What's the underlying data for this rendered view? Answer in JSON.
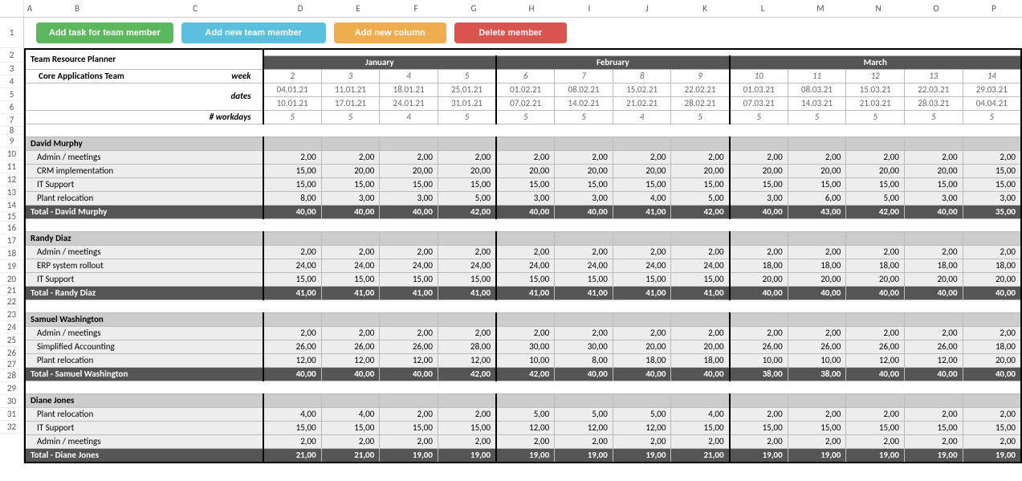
{
  "columns": [
    "A",
    "B",
    "C",
    "D",
    "E",
    "F",
    "G",
    "H",
    "I",
    "J",
    "K",
    "L",
    "M",
    "N",
    "O",
    "P"
  ],
  "rowNumbers": [
    1,
    2,
    3,
    4,
    5,
    6,
    7,
    8,
    9,
    10,
    11,
    12,
    13,
    14,
    15,
    16,
    17,
    18,
    19,
    20,
    21,
    22,
    23,
    24,
    25,
    26,
    27,
    28,
    29,
    30,
    31,
    32
  ],
  "buttons": {
    "addTask": "Add task for team member",
    "addMember": "Add new team member",
    "addColumn": "Add new column",
    "delMember": "Delete member"
  },
  "title": "Team Resource Planner",
  "teamName": "Core Applications Team",
  "headerLabels": {
    "week": "week",
    "dates": "dates",
    "workdays": "# workdays"
  },
  "months": [
    {
      "name": "January",
      "cols": 4
    },
    {
      "name": "February",
      "cols": 4
    },
    {
      "name": "March",
      "cols": 5
    }
  ],
  "weeks": [
    {
      "n": "2",
      "d1": "04.01.21",
      "d2": "10.01.21",
      "wd": "5"
    },
    {
      "n": "3",
      "d1": "11.01.21",
      "d2": "17.01.21",
      "wd": "5"
    },
    {
      "n": "4",
      "d1": "18.01.21",
      "d2": "24.01.21",
      "wd": "4"
    },
    {
      "n": "5",
      "d1": "25.01.21",
      "d2": "31.01.21",
      "wd": "5"
    },
    {
      "n": "6",
      "d1": "01.02.21",
      "d2": "07.02.21",
      "wd": "5"
    },
    {
      "n": "7",
      "d1": "08.02.21",
      "d2": "14.02.21",
      "wd": "5"
    },
    {
      "n": "8",
      "d1": "15.02.21",
      "d2": "21.02.21",
      "wd": "4"
    },
    {
      "n": "9",
      "d1": "22.02.21",
      "d2": "28.02.21",
      "wd": "5"
    },
    {
      "n": "10",
      "d1": "01.03.21",
      "d2": "07.03.21",
      "wd": "5"
    },
    {
      "n": "11",
      "d1": "08.03.21",
      "d2": "14.03.21",
      "wd": "5"
    },
    {
      "n": "12",
      "d1": "15.03.21",
      "d2": "21.03.21",
      "wd": "5"
    },
    {
      "n": "13",
      "d1": "22.03.21",
      "d2": "28.03.21",
      "wd": "5"
    },
    {
      "n": "14",
      "d1": "29.03.21",
      "d2": "04.04.21",
      "wd": "5"
    }
  ],
  "people": [
    {
      "name": "David Murphy",
      "tasks": [
        {
          "label": "Admin / meetings",
          "v": [
            "2,00",
            "2,00",
            "2,00",
            "2,00",
            "2,00",
            "2,00",
            "2,00",
            "2,00",
            "2,00",
            "2,00",
            "2,00",
            "2,00",
            "2,00"
          ]
        },
        {
          "label": "CRM  implementation",
          "v": [
            "15,00",
            "20,00",
            "20,00",
            "20,00",
            "20,00",
            "20,00",
            "20,00",
            "20,00",
            "20,00",
            "20,00",
            "20,00",
            "20,00",
            "15,00"
          ]
        },
        {
          "label": "IT Support",
          "v": [
            "15,00",
            "15,00",
            "15,00",
            "15,00",
            "15,00",
            "15,00",
            "15,00",
            "15,00",
            "15,00",
            "15,00",
            "15,00",
            "15,00",
            "15,00"
          ]
        },
        {
          "label": "Plant relocation",
          "v": [
            "8,00",
            "3,00",
            "3,00",
            "5,00",
            "3,00",
            "3,00",
            "4,00",
            "5,00",
            "3,00",
            "6,00",
            "5,00",
            "3,00",
            "3,00"
          ]
        }
      ],
      "totalLabel": "Total - David Murphy",
      "total": [
        "40,00",
        "40,00",
        "40,00",
        "42,00",
        "40,00",
        "40,00",
        "41,00",
        "42,00",
        "40,00",
        "43,00",
        "42,00",
        "40,00",
        "35,00"
      ]
    },
    {
      "name": "Randy Diaz",
      "tasks": [
        {
          "label": "Admin / meetings",
          "v": [
            "2,00",
            "2,00",
            "2,00",
            "2,00",
            "2,00",
            "2,00",
            "2,00",
            "2,00",
            "2,00",
            "2,00",
            "2,00",
            "2,00",
            "2,00"
          ]
        },
        {
          "label": "ERP system rollout",
          "v": [
            "24,00",
            "24,00",
            "24,00",
            "24,00",
            "24,00",
            "24,00",
            "24,00",
            "24,00",
            "18,00",
            "18,00",
            "18,00",
            "18,00",
            "18,00"
          ]
        },
        {
          "label": "IT Support",
          "v": [
            "15,00",
            "15,00",
            "15,00",
            "15,00",
            "15,00",
            "15,00",
            "15,00",
            "15,00",
            "20,00",
            "20,00",
            "20,00",
            "20,00",
            "20,00"
          ]
        }
      ],
      "totalLabel": "Total - Randy Diaz",
      "total": [
        "41,00",
        "41,00",
        "41,00",
        "41,00",
        "41,00",
        "41,00",
        "41,00",
        "41,00",
        "40,00",
        "40,00",
        "40,00",
        "40,00",
        "40,00"
      ]
    },
    {
      "name": "Samuel Washington",
      "tasks": [
        {
          "label": "Admin / meetings",
          "v": [
            "2,00",
            "2,00",
            "2,00",
            "2,00",
            "2,00",
            "2,00",
            "2,00",
            "2,00",
            "2,00",
            "2,00",
            "2,00",
            "2,00",
            "2,00"
          ]
        },
        {
          "label": "Simplified Accounting",
          "v": [
            "26,00",
            "26,00",
            "26,00",
            "28,00",
            "30,00",
            "30,00",
            "20,00",
            "20,00",
            "26,00",
            "26,00",
            "26,00",
            "26,00",
            "18,00"
          ]
        },
        {
          "label": "Plant relocation",
          "v": [
            "12,00",
            "12,00",
            "12,00",
            "12,00",
            "10,00",
            "8,00",
            "18,00",
            "18,00",
            "10,00",
            "10,00",
            "12,00",
            "12,00",
            "20,00"
          ]
        }
      ],
      "totalLabel": "Total - Samuel Washington",
      "total": [
        "40,00",
        "40,00",
        "40,00",
        "42,00",
        "42,00",
        "40,00",
        "40,00",
        "40,00",
        "38,00",
        "38,00",
        "40,00",
        "40,00",
        "40,00"
      ]
    },
    {
      "name": "Diane Jones",
      "tasks": [
        {
          "label": "Plant relocation",
          "v": [
            "4,00",
            "4,00",
            "2,00",
            "2,00",
            "5,00",
            "5,00",
            "5,00",
            "4,00",
            "2,00",
            "2,00",
            "2,00",
            "2,00",
            "2,00"
          ]
        },
        {
          "label": "IT Support",
          "v": [
            "15,00",
            "15,00",
            "15,00",
            "15,00",
            "12,00",
            "12,00",
            "12,00",
            "15,00",
            "15,00",
            "15,00",
            "15,00",
            "15,00",
            "15,00"
          ]
        },
        {
          "label": "Admin / meetings",
          "v": [
            "2,00",
            "2,00",
            "2,00",
            "2,00",
            "2,00",
            "2,00",
            "2,00",
            "2,00",
            "2,00",
            "2,00",
            "2,00",
            "2,00",
            "2,00"
          ]
        }
      ],
      "totalLabel": "Total - Diane Jones",
      "total": [
        "21,00",
        "21,00",
        "19,00",
        "19,00",
        "19,00",
        "19,00",
        "19,00",
        "21,00",
        "19,00",
        "19,00",
        "19,00",
        "19,00",
        "19,00"
      ]
    }
  ]
}
